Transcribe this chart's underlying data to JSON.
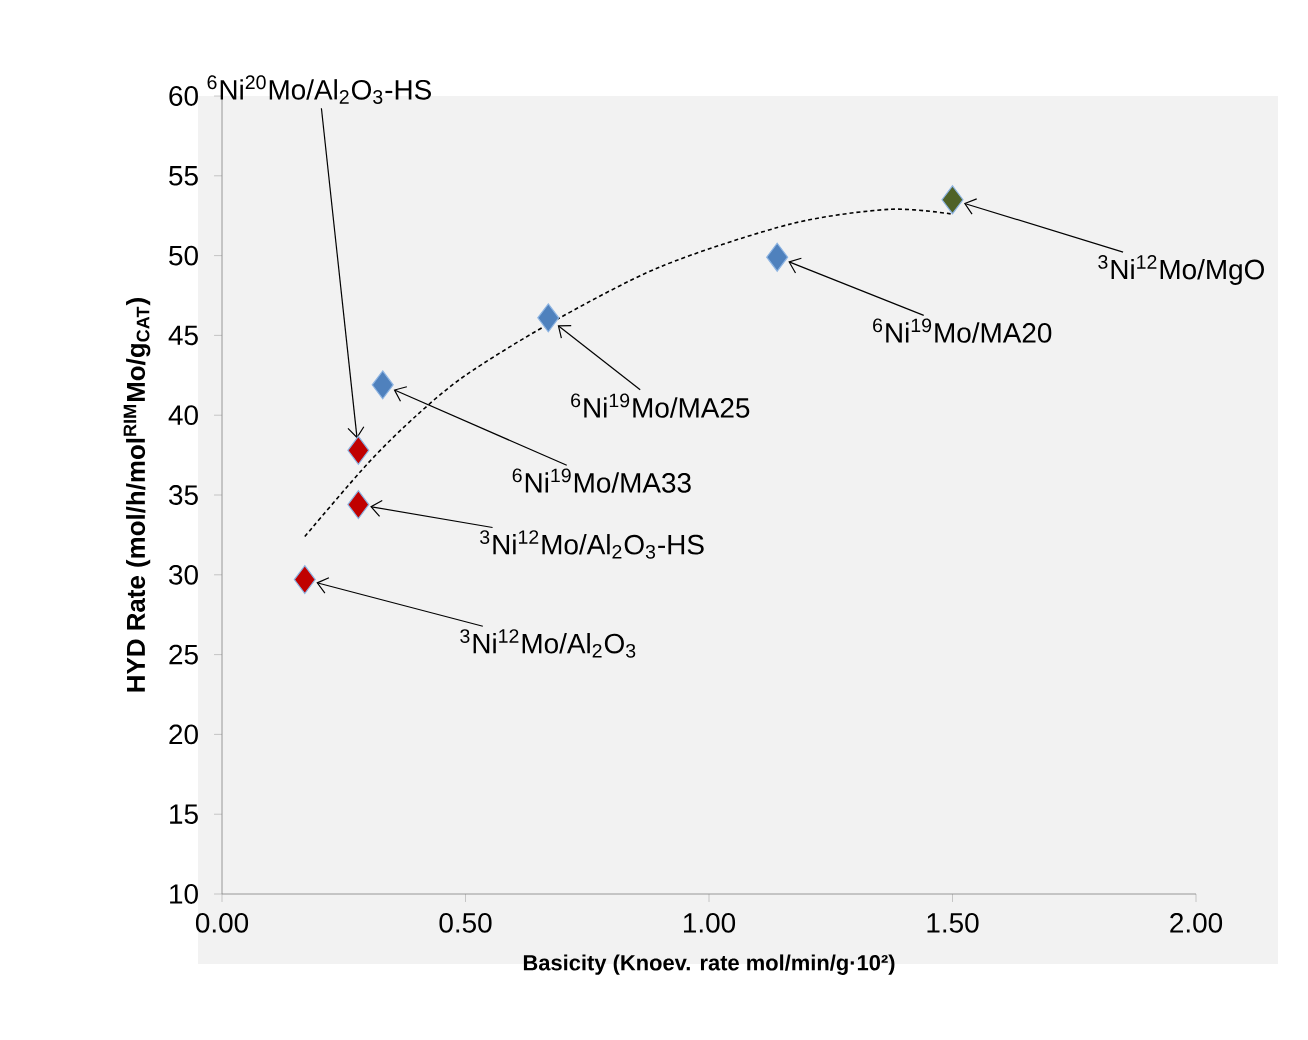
{
  "chart_data": {
    "type": "scatter",
    "xlabel": "Basicity (Knoev. rate  mol/min/g·10²)",
    "ylabel": "HYD Rate (mol/h/mol$^{RIM}$Mo/g$_{CAT}$)",
    "xlim": [
      0,
      2
    ],
    "ylim": [
      10,
      60
    ],
    "xticks": [
      {
        "value": 0,
        "label": "0.00"
      },
      {
        "value": 0.5,
        "label": "0.50"
      },
      {
        "value": 1,
        "label": "1.00"
      },
      {
        "value": 1.5,
        "label": "1.50"
      },
      {
        "value": 2,
        "label": "2.00"
      }
    ],
    "yticks": [
      10,
      15,
      20,
      25,
      30,
      35,
      40,
      45,
      50,
      55,
      60
    ],
    "grid": false,
    "marker": "diamond",
    "series": [
      {
        "type": "scatter",
        "x": [
          0.17,
          0.28,
          0.28,
          0.33,
          0.67,
          1.14,
          1.5
        ],
        "values": [
          29.7,
          34.4,
          37.8,
          41.9,
          46.1,
          49.9,
          53.5
        ],
        "colors": [
          "#c00000",
          "#c00000",
          "#c00000",
          "#4f81bd",
          "#4f81bd",
          "#4f81bd",
          "#4f6228"
        ]
      },
      {
        "type": "line",
        "marker": "none",
        "line_style": "dashed",
        "color": "#000000",
        "x": [
          0.17,
          0.3,
          0.4,
          0.5,
          0.67,
          0.9,
          1.17,
          1.37,
          1.5
        ],
        "values": [
          32.4,
          37.0,
          40.0,
          42.5,
          45.7,
          49.3,
          52.0,
          52.9,
          52.6
        ]
      }
    ],
    "annotations": [
      {
        "text": "$^{3}$Ni$^{12}$Mo/Al$_{2}$O$_{3}$",
        "x": 0.17,
        "y": 29.7
      },
      {
        "text": "$^{3}$Ni$^{12}$Mo/Al$_{2}$O$_{3}$-HS",
        "x": 0.28,
        "y": 34.4
      },
      {
        "text": "$^{6}$Ni$^{20}$Mo/Al$_{2}$O$_{3}$-HS",
        "x": 0.28,
        "y": 37.8
      },
      {
        "text": "$^{6}$Ni$^{19}$Mo/MA33",
        "x": 0.33,
        "y": 41.9
      },
      {
        "text": "$^{6}$Ni$^{19}$Mo/MA25",
        "x": 0.67,
        "y": 46.1
      },
      {
        "text": "$^{6}$Ni$^{19}$Mo/MA20",
        "x": 1.14,
        "y": 49.9
      },
      {
        "text": "$^{3}$Ni$^{12}$Mo/MgO",
        "x": 1.5,
        "y": 53.5
      }
    ]
  }
}
